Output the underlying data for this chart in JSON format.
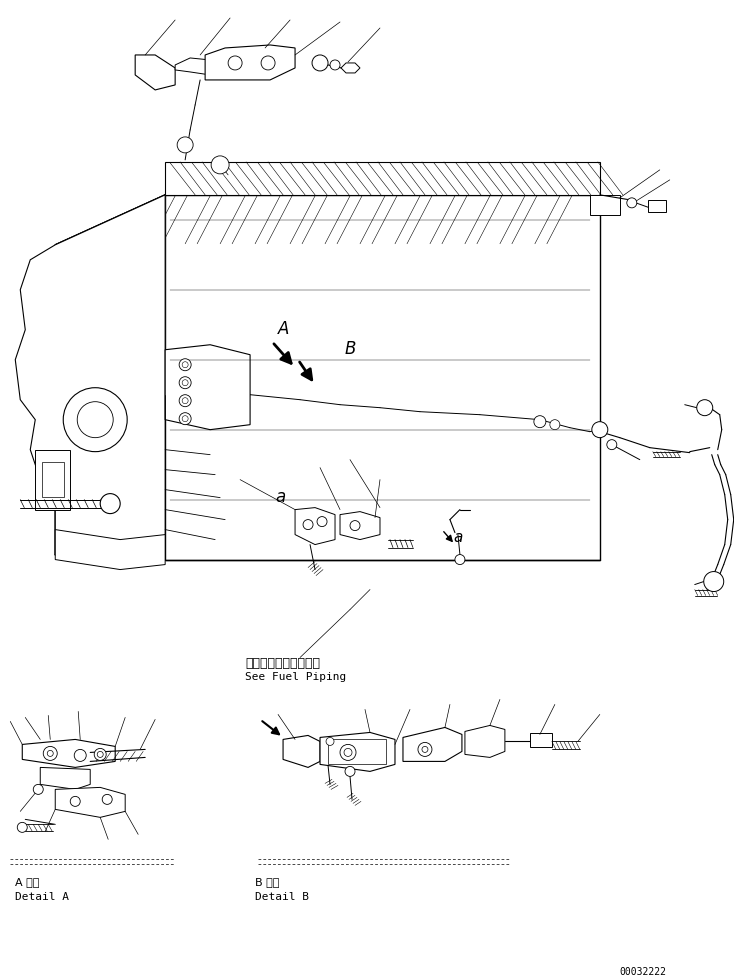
{
  "background_color": "#ffffff",
  "line_color": "#000000",
  "fig_width": 7.34,
  "fig_height": 9.8,
  "dpi": 100,
  "label_a": "A",
  "label_b": "B",
  "label_a_small": "a",
  "see_fuel_jp": "フェルバイピング参照",
  "see_fuel_en": "See Fuel Piping",
  "detail_a_jp": "A 詳細",
  "detail_a_en": "Detail A",
  "detail_b_jp": "B 詳細",
  "detail_b_en": "Detail B",
  "doc_number": "00032222"
}
